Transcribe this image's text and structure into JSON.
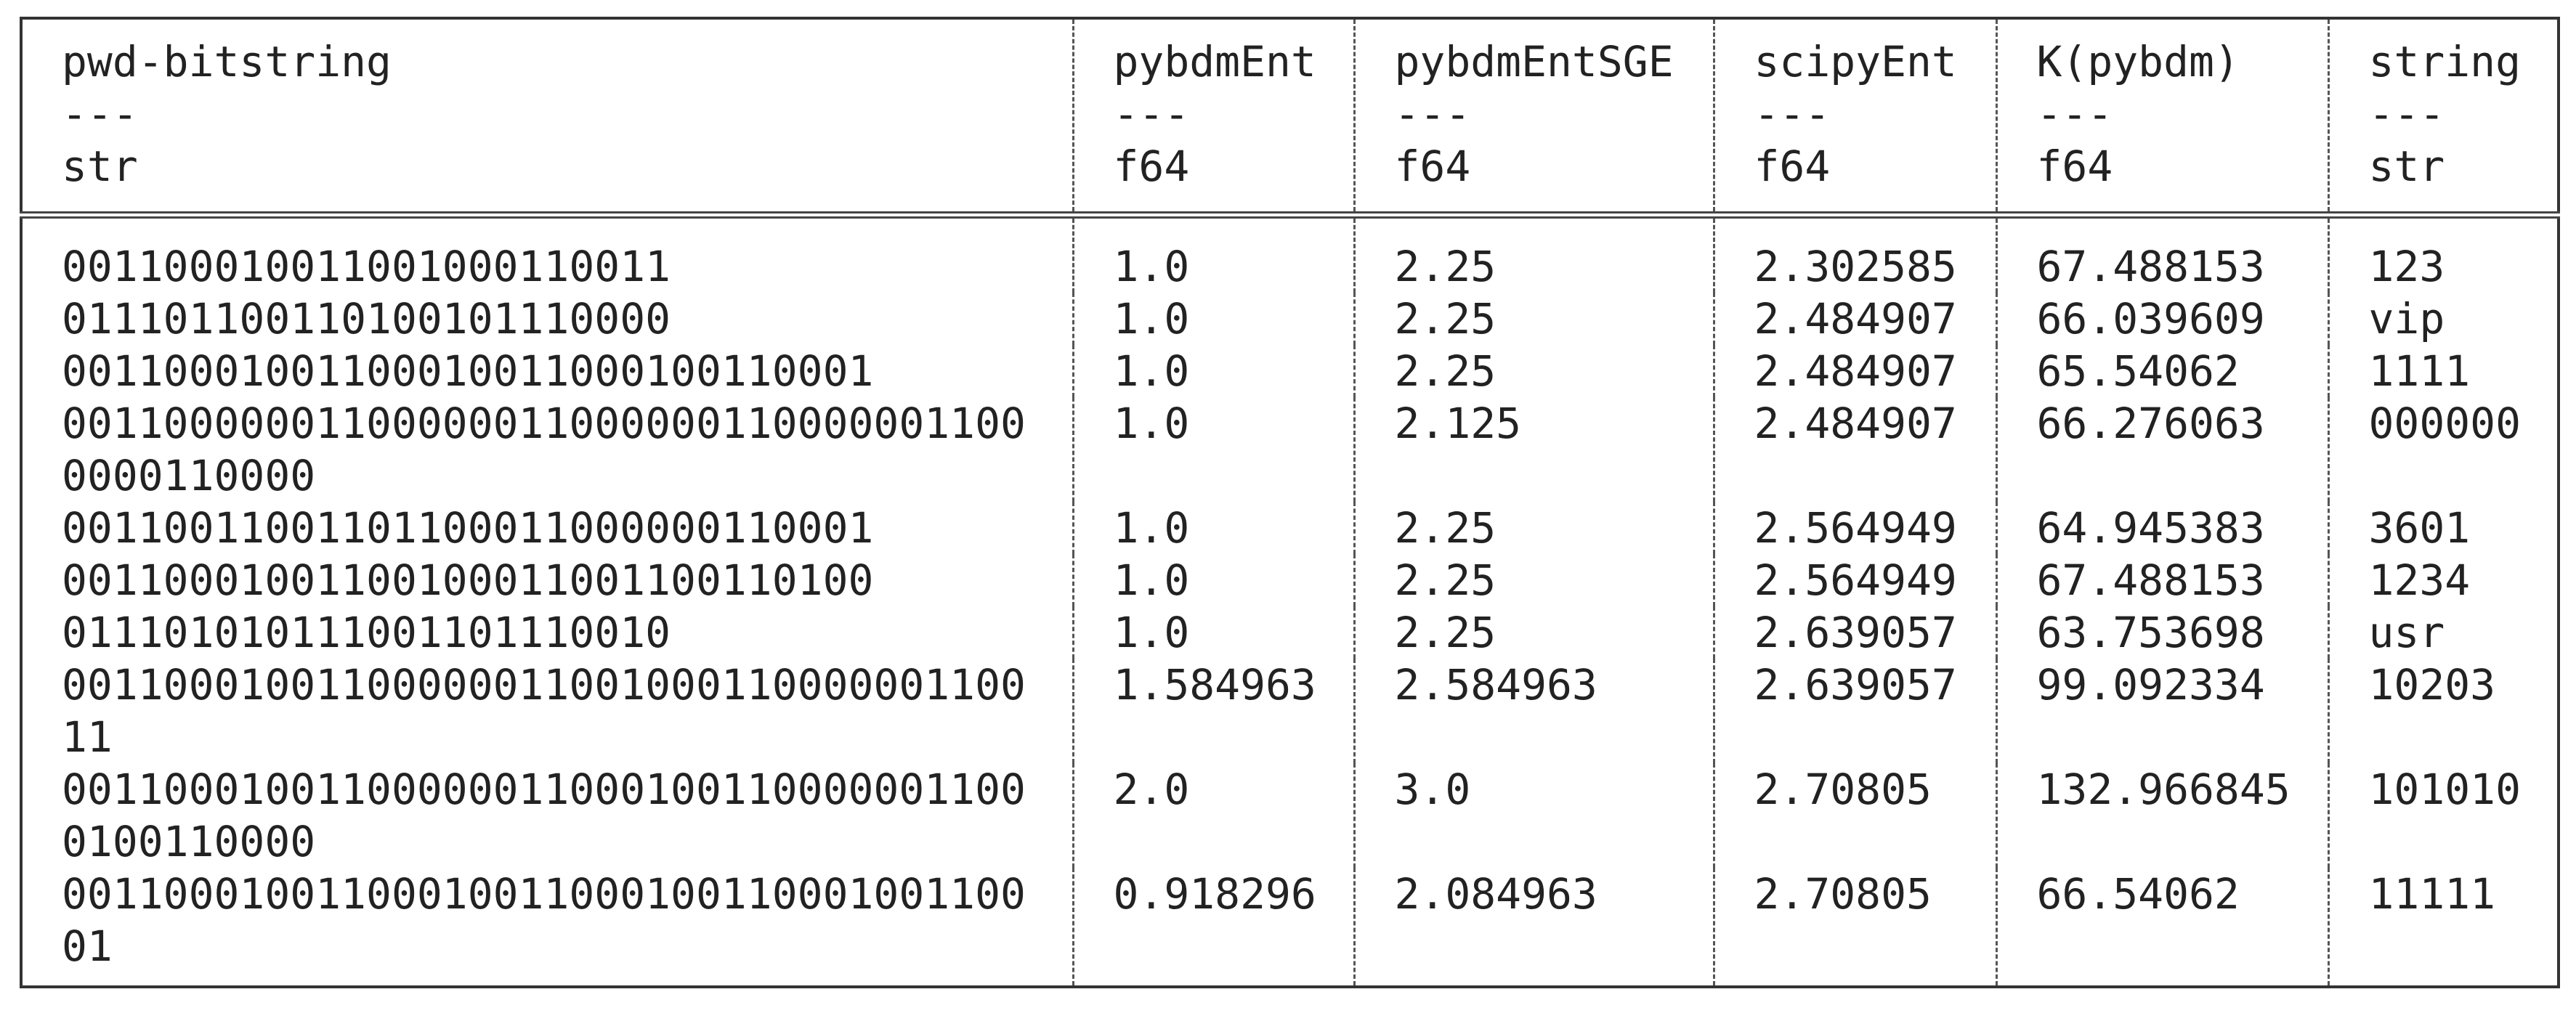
{
  "table": {
    "columns": [
      {
        "name": "pwd-bitstring",
        "separator": "---",
        "dtype": "str"
      },
      {
        "name": "pybdmEnt",
        "separator": "---",
        "dtype": "f64"
      },
      {
        "name": "pybdmEntSGE",
        "separator": "---",
        "dtype": "f64"
      },
      {
        "name": "scipyEnt",
        "separator": "---",
        "dtype": "f64"
      },
      {
        "name": "K(pybdm)",
        "separator": "---",
        "dtype": "f64"
      },
      {
        "name": "string",
        "separator": "---",
        "dtype": "str"
      }
    ],
    "rows": [
      [
        "001100010011001000110011",
        "1.0",
        "2.25",
        "2.302585",
        "67.488153",
        "123"
      ],
      [
        "011101100110100101110000",
        "1.0",
        "2.25",
        "2.484907",
        "66.039609",
        "vip"
      ],
      [
        "00110001001100010011000100110001",
        "1.0",
        "2.25",
        "2.484907",
        "65.54062",
        "1111"
      ],
      [
        "001100000011000000110000001100000011000000110000",
        "1.0",
        "2.125",
        "2.484907",
        "66.276063",
        "000000"
      ],
      [
        "00110011001101100011000000110001",
        "1.0",
        "2.25",
        "2.564949",
        "64.945383",
        "3601"
      ],
      [
        "00110001001100100011001100110100",
        "1.0",
        "2.25",
        "2.564949",
        "67.488153",
        "1234"
      ],
      [
        "011101010111001101110010",
        "1.0",
        "2.25",
        "2.639057",
        "63.753698",
        "usr"
      ],
      [
        "0011000100110000001100100011000000110011",
        "1.584963",
        "2.584963",
        "2.639057",
        "99.092334",
        "10203"
      ],
      [
        "001100010011000000110001001100000011000100110000",
        "2.0",
        "3.0",
        "2.70805",
        "132.966845",
        "101010"
      ],
      [
        "0011000100110001001100010011000100110001",
        "0.918296",
        "2.084963",
        "2.70805",
        "66.54062",
        "11111"
      ]
    ]
  }
}
